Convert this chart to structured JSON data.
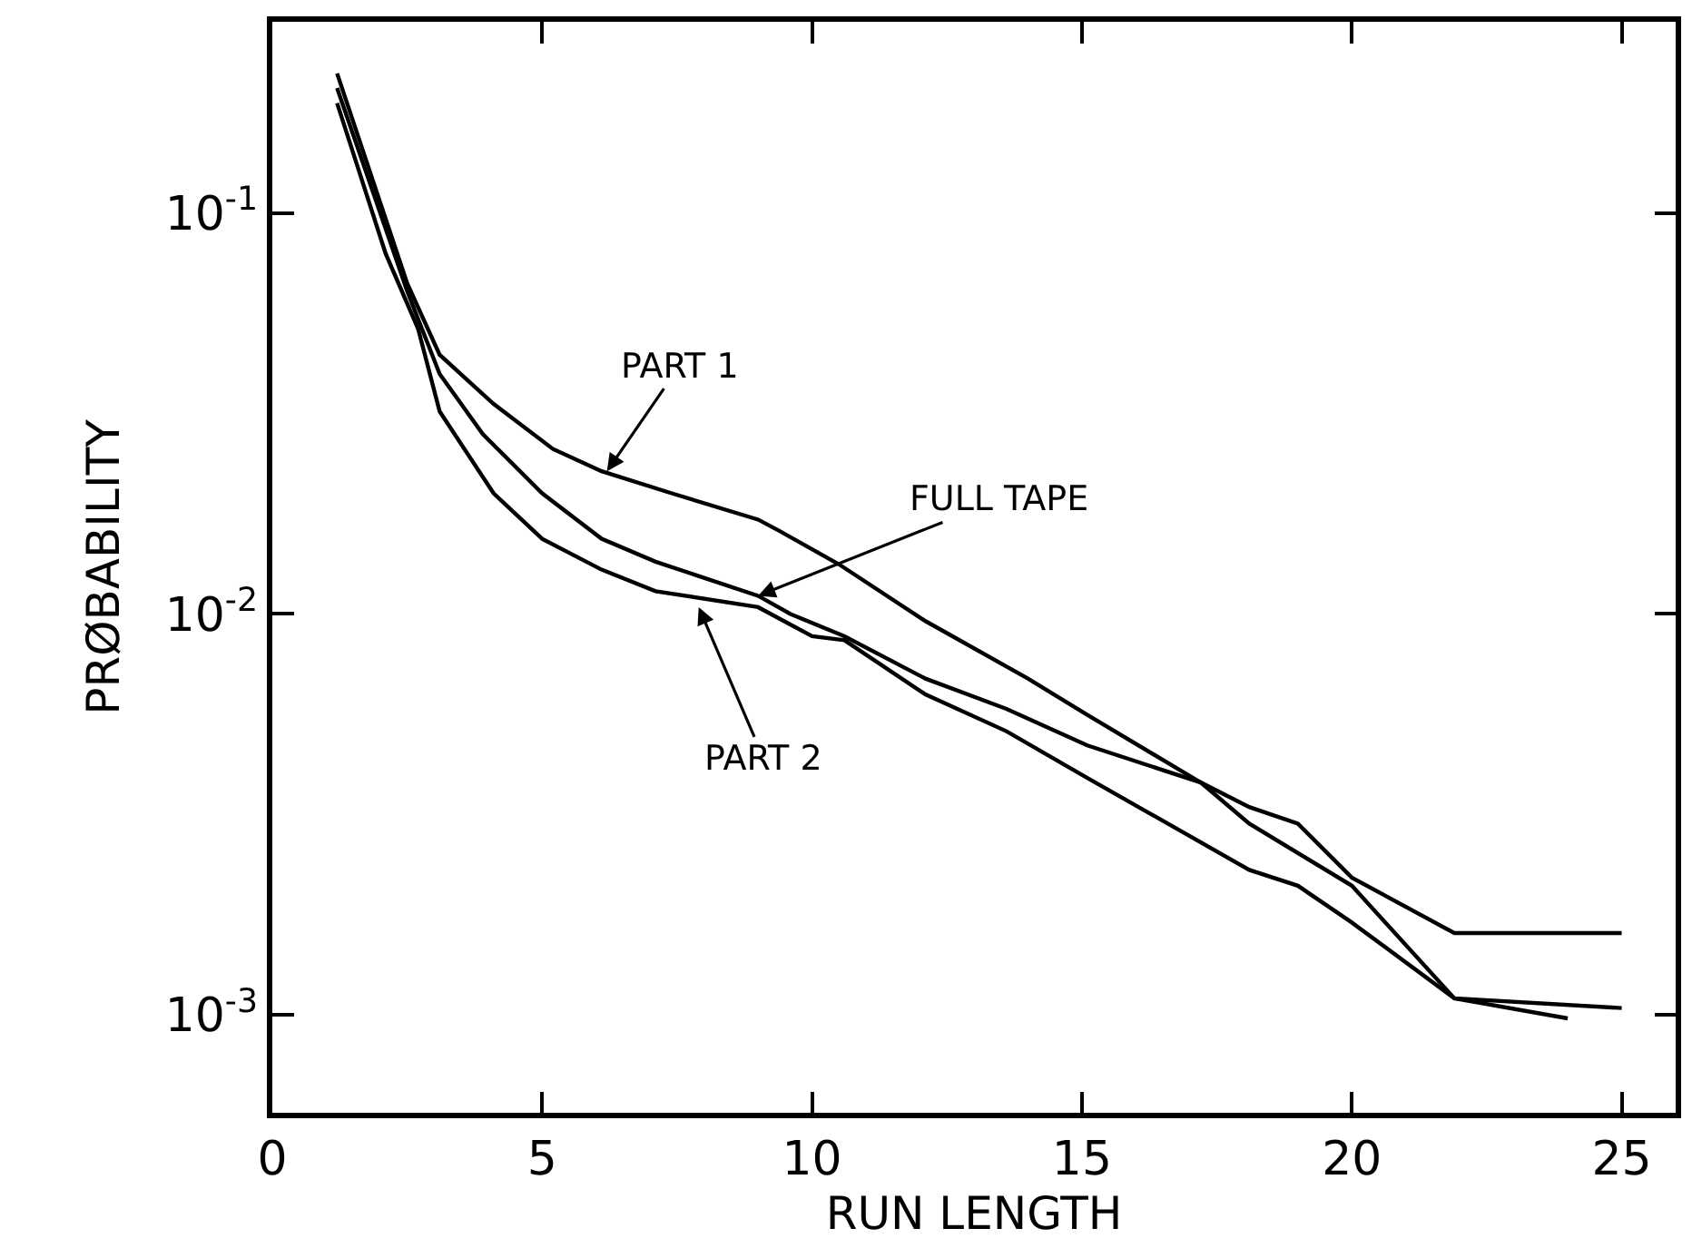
{
  "chart_data": {
    "type": "line",
    "xlabel": "RUN LENGTH",
    "ylabel": "PRØBABILITY",
    "log": "y",
    "marker": "none",
    "line_style": "solid",
    "xlim": [
      0,
      26
    ],
    "ylim": [
      0.00057,
      0.3
    ],
    "xticks": [
      0,
      5,
      10,
      15,
      20,
      25
    ],
    "yticks": [
      {
        "value": 0.1,
        "label": "10$^{-1}$"
      },
      {
        "value": 0.01,
        "label": "10$^{-2}$"
      },
      {
        "value": 0.001,
        "label": "10$^{-3}$"
      }
    ],
    "series": [
      {
        "color": "#000000",
        "x": [
          1.2,
          2.5,
          3.1,
          4.1,
          5.2,
          6.1,
          7.4,
          9.0,
          9.4,
          10.5,
          12.1,
          14.0,
          15.1,
          17.2,
          18.1,
          19.0,
          20.0,
          21.9,
          25.0
        ],
        "values": [
          0.223,
          0.0667,
          0.0443,
          0.0334,
          0.0258,
          0.0227,
          0.02,
          0.0172,
          0.0161,
          0.0133,
          0.0096,
          0.0069,
          0.0056,
          0.0038,
          0.0033,
          0.003,
          0.0022,
          0.0016,
          0.0016
        ]
      },
      {
        "color": "#000000",
        "x": [
          1.2,
          2.5,
          3.1,
          3.9,
          5.0,
          6.1,
          7.1,
          9.0,
          9.6,
          10.6,
          12.1,
          13.6,
          15.1,
          17.2,
          18.1,
          20.0,
          21.9,
          25.0
        ],
        "values": [
          0.205,
          0.0638,
          0.0397,
          0.0281,
          0.02,
          0.0154,
          0.0135,
          0.0111,
          0.01,
          0.0088,
          0.0069,
          0.0058,
          0.0047,
          0.0038,
          0.003,
          0.0021,
          0.0011,
          0.00104
        ]
      },
      {
        "color": "#000000",
        "x": [
          1.2,
          2.1,
          2.7,
          3.1,
          4.1,
          5.0,
          6.1,
          7.1,
          9.0,
          10.0,
          10.6,
          12.1,
          13.6,
          15.1,
          18.1,
          19.0,
          20.0,
          21.9,
          24.0
        ],
        "values": [
          0.188,
          0.0792,
          0.0515,
          0.032,
          0.02,
          0.0154,
          0.0129,
          0.0114,
          0.0104,
          0.0088,
          0.0086,
          0.0063,
          0.0051,
          0.0039,
          0.0023,
          0.0021,
          0.0017,
          0.0011,
          0.00098
        ]
      }
    ],
    "annotations": [
      {
        "text": "PART 1",
        "x": 6.2,
        "y": 0.0227
      },
      {
        "text": "FULL TAPE",
        "x": 9.0,
        "y": 0.0111
      },
      {
        "text": "PART 2",
        "x": 7.9,
        "y": 0.0104
      }
    ]
  }
}
